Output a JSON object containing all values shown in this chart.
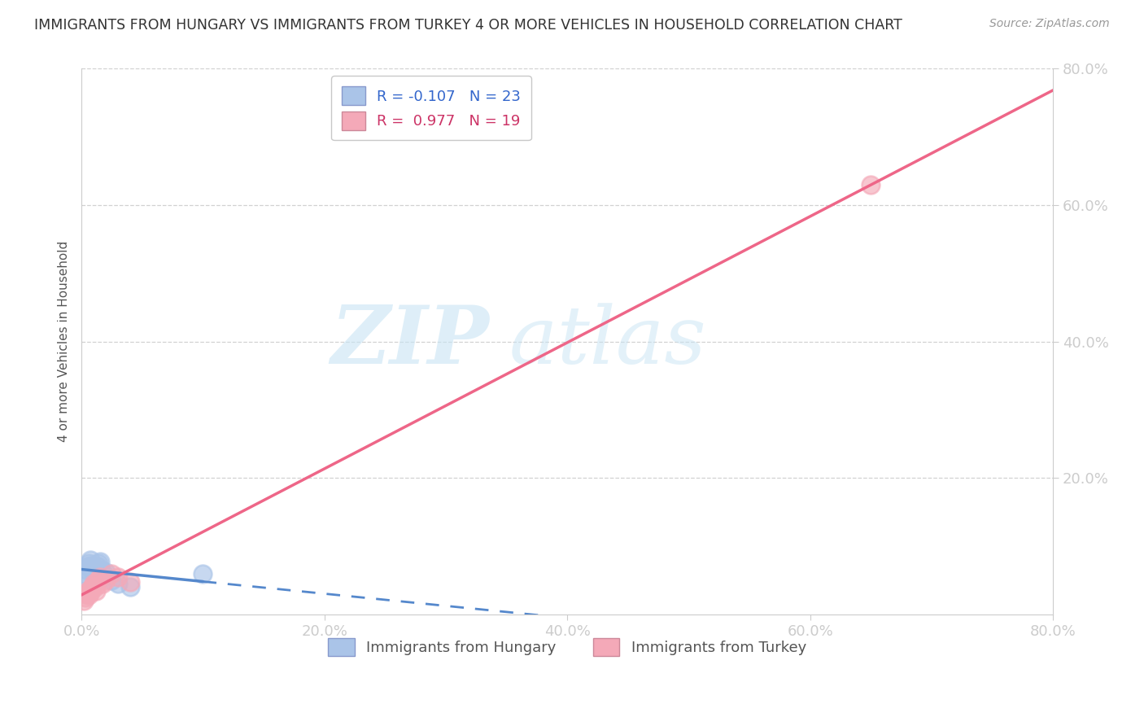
{
  "title": "IMMIGRANTS FROM HUNGARY VS IMMIGRANTS FROM TURKEY 4 OR MORE VEHICLES IN HOUSEHOLD CORRELATION CHART",
  "source": "Source: ZipAtlas.com",
  "ylabel": "4 or more Vehicles in Household",
  "xlim": [
    0.0,
    0.8
  ],
  "ylim": [
    0.0,
    0.8
  ],
  "xticks": [
    0.0,
    0.2,
    0.4,
    0.6,
    0.8
  ],
  "yticks": [
    0.2,
    0.4,
    0.6,
    0.8
  ],
  "xticklabels": [
    "0.0%",
    "20.0%",
    "40.0%",
    "60.0%",
    "80.0%"
  ],
  "yticklabels": [
    "20.0%",
    "40.0%",
    "60.0%",
    "80.0%"
  ],
  "hungary_color": "#aac4e8",
  "turkey_color": "#f4a9b8",
  "hungary_line_color": "#5588cc",
  "turkey_line_color": "#ee6688",
  "hungary_R": -0.107,
  "hungary_N": 23,
  "turkey_R": 0.977,
  "turkey_N": 19,
  "legend_label_hungary": "Immigrants from Hungary",
  "legend_label_turkey": "Immigrants from Turkey",
  "hungary_x": [
    0.002,
    0.003,
    0.004,
    0.005,
    0.006,
    0.007,
    0.008,
    0.009,
    0.01,
    0.011,
    0.012,
    0.013,
    0.014,
    0.015,
    0.016,
    0.017,
    0.018,
    0.019,
    0.02,
    0.025,
    0.03,
    0.04,
    0.1
  ],
  "hungary_y": [
    0.06,
    0.055,
    0.065,
    0.07,
    0.075,
    0.08,
    0.072,
    0.065,
    0.068,
    0.062,
    0.058,
    0.07,
    0.075,
    0.078,
    0.065,
    0.06,
    0.055,
    0.058,
    0.062,
    0.05,
    0.045,
    0.04,
    0.06
  ],
  "turkey_x": [
    0.002,
    0.003,
    0.004,
    0.005,
    0.006,
    0.007,
    0.008,
    0.009,
    0.01,
    0.011,
    0.012,
    0.013,
    0.015,
    0.017,
    0.02,
    0.025,
    0.03,
    0.04,
    0.65
  ],
  "turkey_y": [
    0.02,
    0.025,
    0.03,
    0.035,
    0.028,
    0.032,
    0.038,
    0.042,
    0.045,
    0.04,
    0.035,
    0.05,
    0.055,
    0.045,
    0.05,
    0.06,
    0.055,
    0.048,
    0.63
  ],
  "watermark_zip": "ZIP",
  "watermark_atlas": "atlas",
  "background_color": "#ffffff",
  "grid_color": "#cccccc",
  "title_color": "#333333",
  "tick_color": "#4499ff",
  "ylabel_color": "#555555"
}
